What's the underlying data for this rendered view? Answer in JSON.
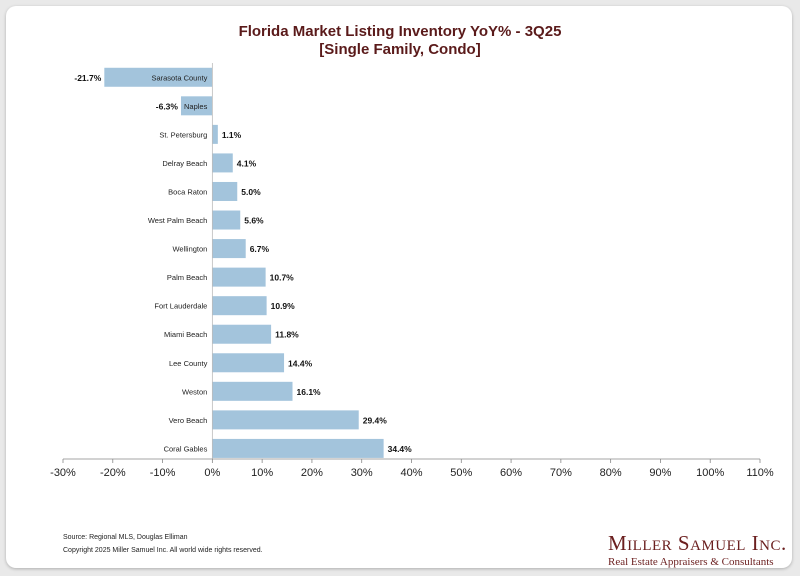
{
  "chart_data": {
    "type": "bar",
    "orientation": "horizontal",
    "title": "Florida Market Listing Inventory YoY% - 3Q25",
    "subtitle": "[Single Family, Condo]",
    "categories": [
      "Sarasota County",
      "Naples",
      "St. Petersburg",
      "Delray Beach",
      "Boca Raton",
      "West Palm Beach",
      "Wellington",
      "Palm Beach",
      "Fort Lauderdale",
      "Miami Beach",
      "Lee County",
      "Weston",
      "Vero Beach",
      "Coral Gables"
    ],
    "values": [
      -21.7,
      -6.3,
      1.1,
      4.1,
      5.0,
      5.6,
      6.7,
      10.7,
      10.9,
      11.8,
      14.4,
      16.1,
      29.4,
      34.4
    ],
    "value_labels": [
      "-21.7%",
      "-6.3%",
      "1.1%",
      "4.1%",
      "5.0%",
      "5.6%",
      "6.7%",
      "10.7%",
      "10.9%",
      "11.8%",
      "14.4%",
      "16.1%",
      "29.4%",
      "34.4%"
    ],
    "xlim": [
      -30,
      110
    ],
    "x_ticks": [
      -30,
      -20,
      -10,
      0,
      10,
      20,
      30,
      40,
      50,
      60,
      70,
      80,
      90,
      100,
      110
    ],
    "x_tick_labels": [
      "-30%",
      "-20%",
      "-10%",
      "0%",
      "10%",
      "20%",
      "30%",
      "40%",
      "50%",
      "60%",
      "70%",
      "80%",
      "90%",
      "100%",
      "110%"
    ],
    "bar_color": "#a3c4dc",
    "grid": false,
    "xlabel": "",
    "ylabel": ""
  },
  "footer": {
    "source": "Source: Regional MLS, Douglas Elliman",
    "copyright": "Copyright 2025 Miller Samuel Inc.  All world wide rights reserved."
  },
  "brand": {
    "name": "Miller Samuel Inc.",
    "tagline": "Real Estate Appraisers & Consultants",
    "color": "#6b1f1f"
  }
}
